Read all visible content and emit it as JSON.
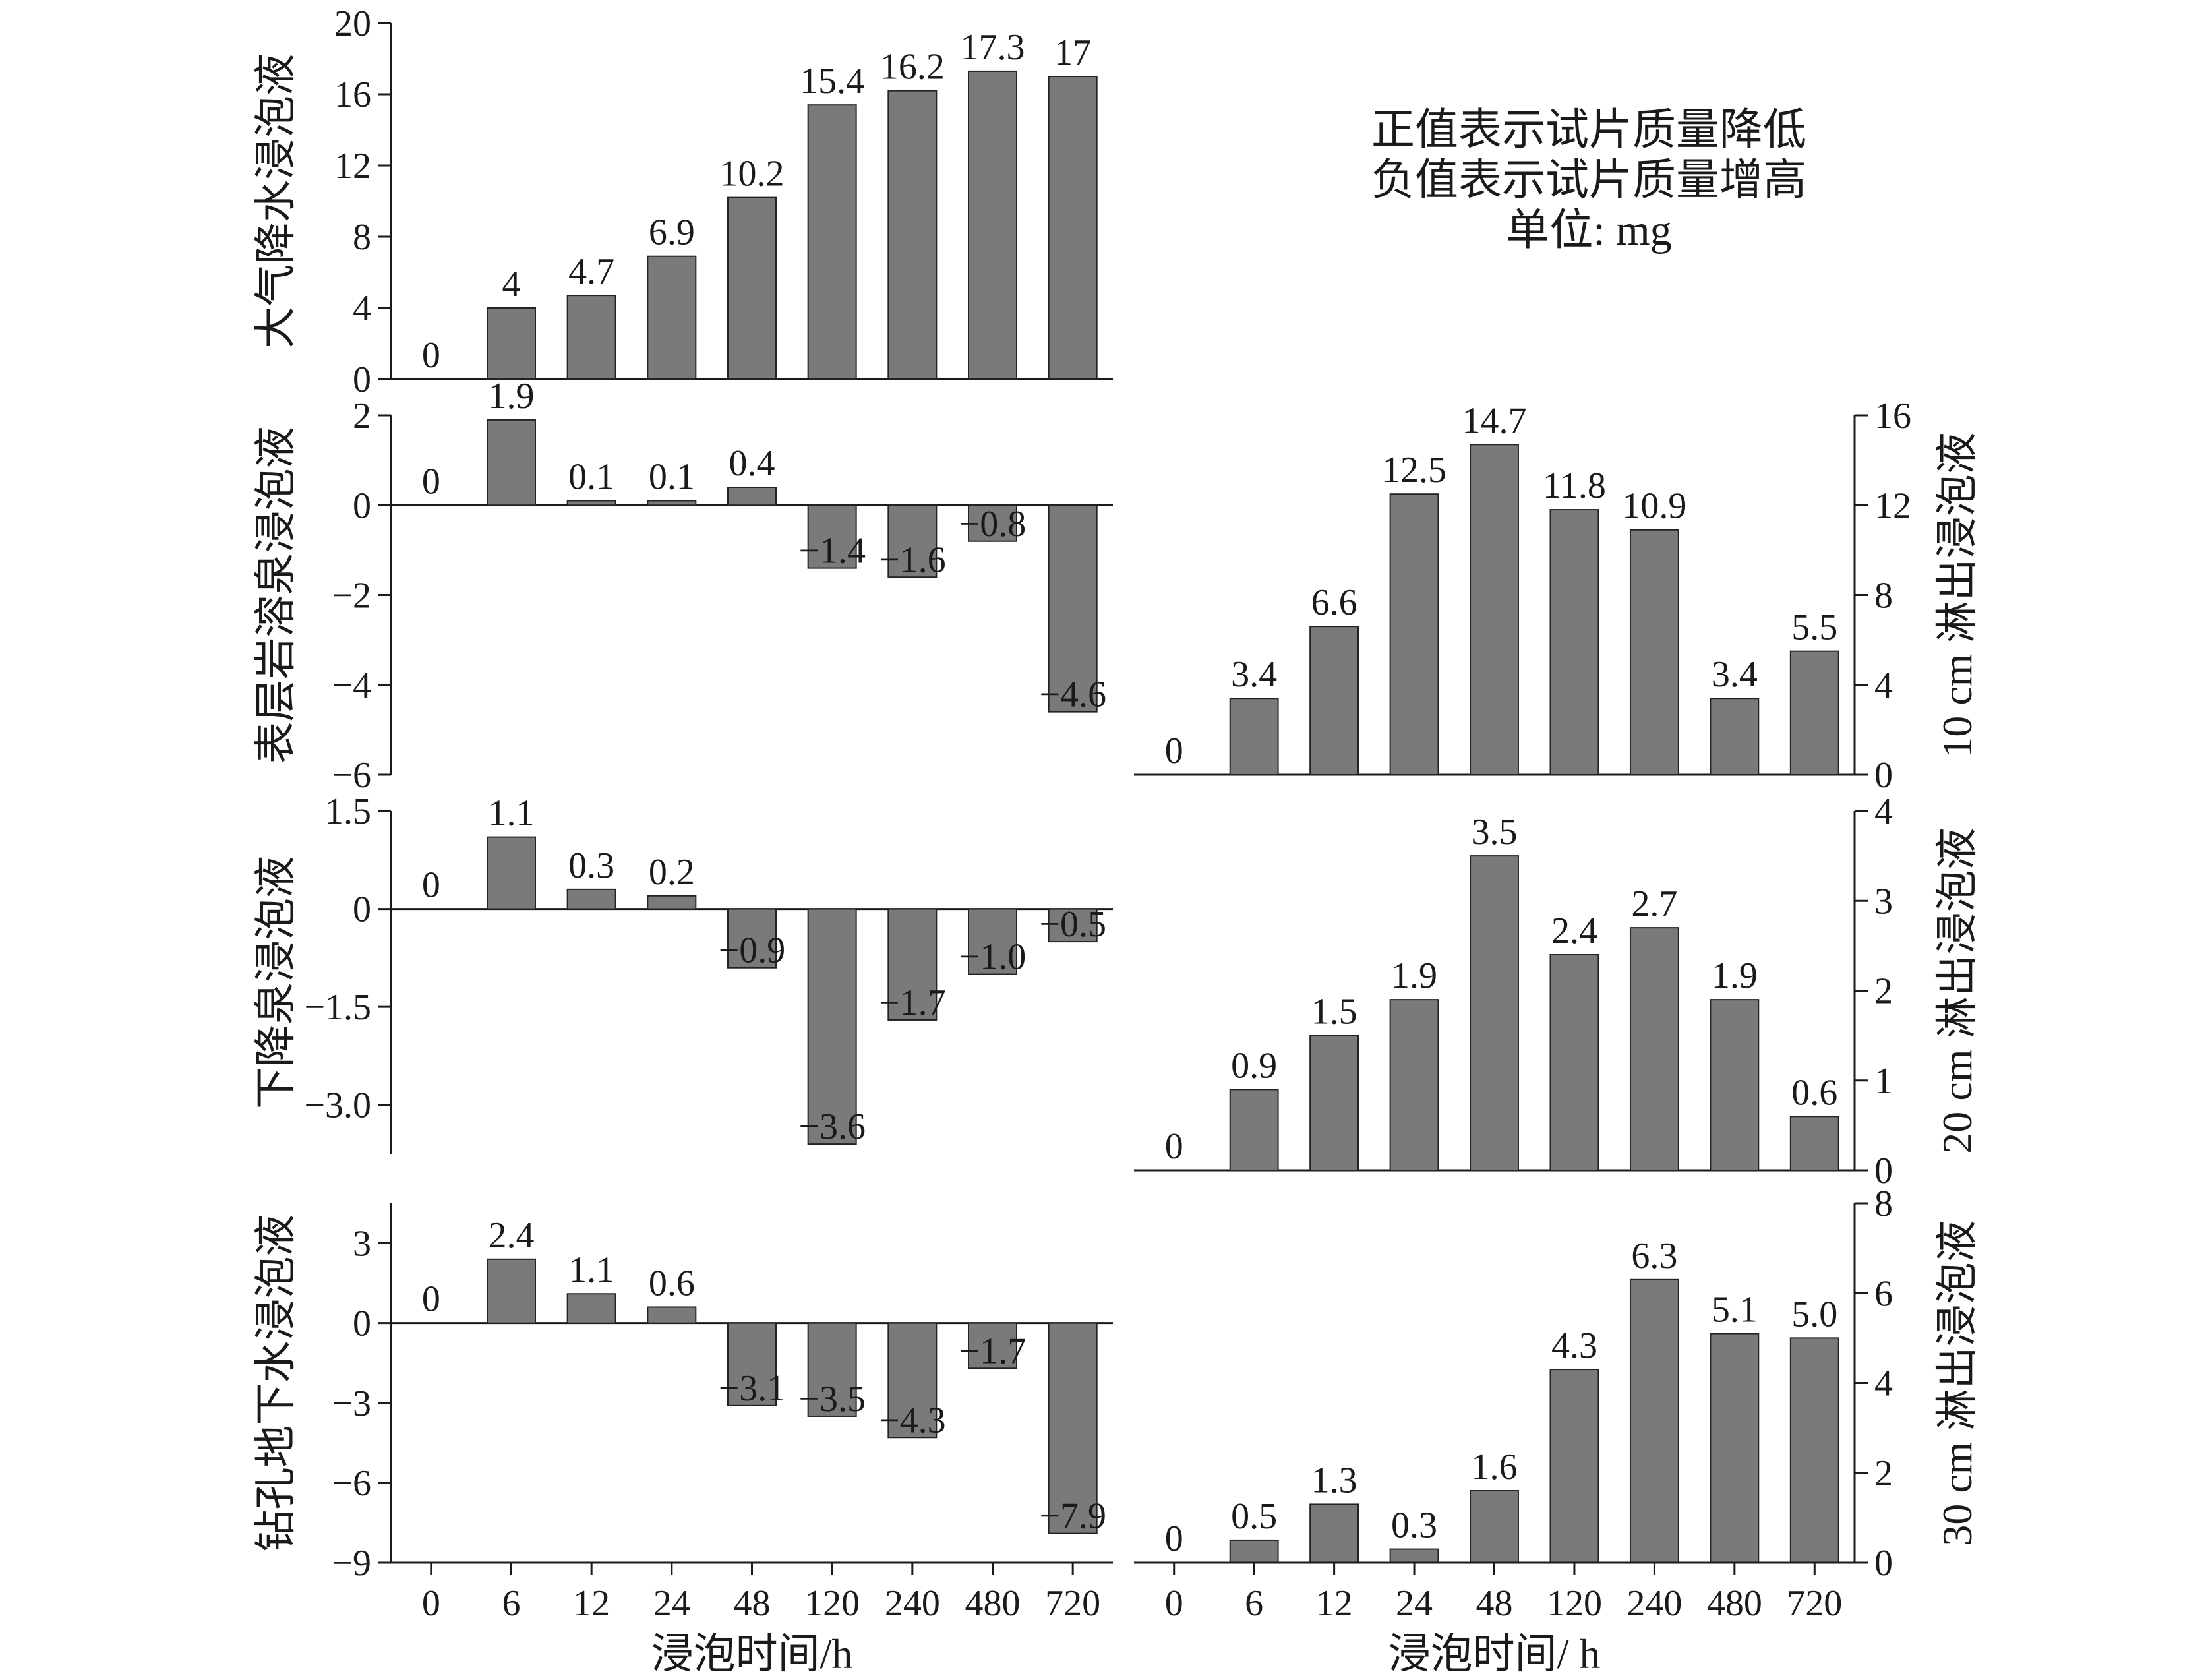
{
  "note": {
    "lines": [
      "正值表示试片质量降低",
      "负值表示试片质量增高",
      "单位: mg"
    ]
  },
  "colors": {
    "bar": "#7a7a7a",
    "bar_stroke": "#222222",
    "axis": "#1a1a1a"
  },
  "chart_data": [
    {
      "type": "bar",
      "id": "rain",
      "title": "",
      "ylabel": "大气降水浸泡液",
      "xlabel": "",
      "categories": [
        "0",
        "6",
        "12",
        "24",
        "48",
        "120",
        "240",
        "480",
        "720"
      ],
      "values": [
        0,
        4,
        4.7,
        6.9,
        10.2,
        15.4,
        16.2,
        17.3,
        17
      ],
      "labels": [
        "0",
        "4",
        "4.7",
        "6.9",
        "10.2",
        "15.4",
        "16.2",
        "17.3",
        "17"
      ],
      "ylim": [
        0,
        20
      ],
      "yticks": [
        "0",
        "4",
        "8",
        "12",
        "16",
        "20"
      ],
      "axis_side": "left",
      "grid": false
    },
    {
      "type": "bar",
      "id": "karst",
      "title": "",
      "ylabel": "表层岩溶泉浸泡液",
      "xlabel": "",
      "categories": [
        "0",
        "6",
        "12",
        "24",
        "48",
        "120",
        "240",
        "480",
        "720"
      ],
      "values": [
        0,
        1.9,
        0.1,
        0.1,
        0.4,
        -1.4,
        -1.6,
        -0.8,
        -4.6
      ],
      "labels": [
        "0",
        "1.9",
        "0.1",
        "0.1",
        "0.4",
        "−1.4",
        "−1.6",
        "−0.8",
        "−4.6"
      ],
      "ylim": [
        -6,
        2
      ],
      "yticks": [
        "2",
        "0",
        "−2",
        "−4",
        "−6"
      ],
      "axis_side": "left",
      "grid": false
    },
    {
      "type": "bar",
      "id": "spring",
      "title": "",
      "ylabel": "下降泉浸泡液",
      "xlabel": "",
      "categories": [
        "0",
        "6",
        "12",
        "24",
        "48",
        "120",
        "240",
        "480",
        "720"
      ],
      "values": [
        0,
        1.1,
        0.3,
        0.2,
        -0.9,
        -3.6,
        -1.7,
        -1.0,
        -0.5
      ],
      "labels": [
        "0",
        "1.1",
        "0.3",
        "0.2",
        "−0.9",
        "−3.6",
        "−1.7",
        "−1.0",
        "−0.5"
      ],
      "ylim": [
        -3.75,
        1.5
      ],
      "yticks": [
        "1.5",
        "0",
        "−1.5",
        "−3.0"
      ],
      "axis_side": "left",
      "grid": false
    },
    {
      "type": "bar",
      "id": "borehole",
      "title": "",
      "ylabel": "钻孔地下水浸泡液",
      "xlabel": "浸泡时间/h",
      "categories": [
        "0",
        "6",
        "12",
        "24",
        "48",
        "120",
        "240",
        "480",
        "720"
      ],
      "values": [
        0,
        2.4,
        1.1,
        0.6,
        -3.1,
        -3.5,
        -4.3,
        -1.7,
        -7.9
      ],
      "labels": [
        "0",
        "2.4",
        "1.1",
        "0.6",
        "−3.1",
        "−3.5",
        "−4.3",
        "−1.7",
        "−7.9"
      ],
      "ylim": [
        -9,
        4.5
      ],
      "yticks": [
        "3",
        "0",
        "−3",
        "−6",
        "−9"
      ],
      "axis_side": "left",
      "grid": false
    },
    {
      "type": "bar",
      "id": "leach10",
      "title": "",
      "ylabel": "10 cm 淋出浸泡液",
      "xlabel": "",
      "categories": [
        "0",
        "6",
        "12",
        "24",
        "48",
        "120",
        "240",
        "480",
        "720"
      ],
      "values": [
        0,
        3.4,
        6.6,
        12.5,
        14.7,
        11.8,
        10.9,
        3.4,
        5.5
      ],
      "labels": [
        "0",
        "3.4",
        "6.6",
        "12.5",
        "14.7",
        "11.8",
        "10.9",
        "3.4",
        "5.5"
      ],
      "ylim": [
        0,
        16
      ],
      "yticks": [
        "0",
        "4",
        "8",
        "12",
        "16"
      ],
      "axis_side": "right",
      "grid": false
    },
    {
      "type": "bar",
      "id": "leach20",
      "title": "",
      "ylabel": "20 cm 淋出浸泡液",
      "xlabel": "",
      "categories": [
        "0",
        "6",
        "12",
        "24",
        "48",
        "120",
        "240",
        "480",
        "720"
      ],
      "values": [
        0,
        0.9,
        1.5,
        1.9,
        3.5,
        2.4,
        2.7,
        1.9,
        0.6
      ],
      "labels": [
        "0",
        "0.9",
        "1.5",
        "1.9",
        "3.5",
        "2.4",
        "2.7",
        "1.9",
        "0.6"
      ],
      "ylim": [
        0,
        4
      ],
      "yticks": [
        "0",
        "1",
        "2",
        "3",
        "4"
      ],
      "axis_side": "right",
      "grid": false
    },
    {
      "type": "bar",
      "id": "leach30",
      "title": "",
      "ylabel": "30 cm 淋出浸泡液",
      "xlabel": "浸泡时间/ h",
      "categories": [
        "0",
        "6",
        "12",
        "24",
        "48",
        "120",
        "240",
        "480",
        "720"
      ],
      "values": [
        0,
        0.5,
        1.3,
        0.3,
        1.6,
        4.3,
        6.3,
        5.1,
        5.0
      ],
      "labels": [
        "0",
        "0.5",
        "1.3",
        "0.3",
        "1.6",
        "4.3",
        "6.3",
        "5.1",
        "5.0"
      ],
      "ylim": [
        0,
        8
      ],
      "yticks": [
        "0",
        "2",
        "4",
        "6",
        "8"
      ],
      "axis_side": "right",
      "grid": false
    }
  ]
}
